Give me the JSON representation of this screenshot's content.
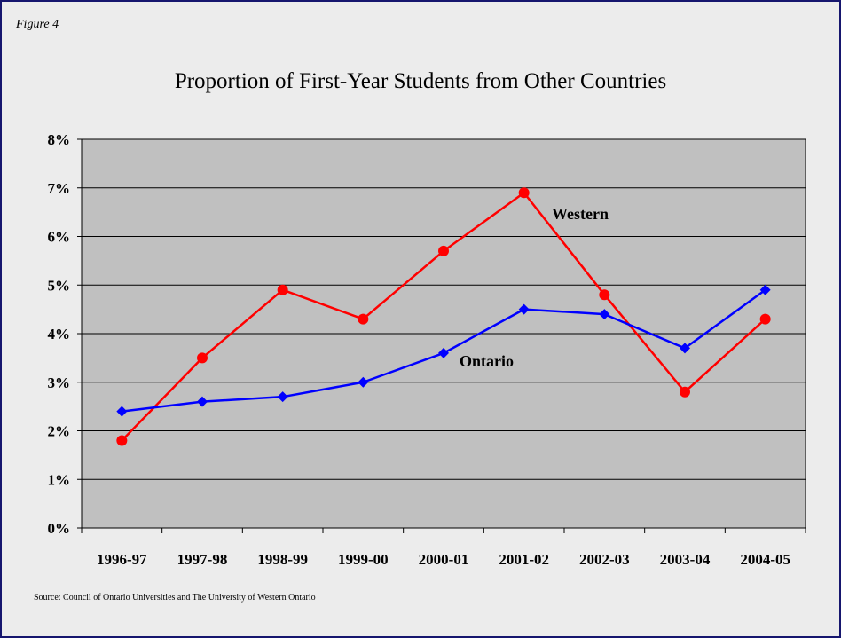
{
  "figure_label": "Figure 4",
  "source": "Source:  Council of Ontario Universities and The University of Western Ontario",
  "chart_data": {
    "type": "line",
    "title": "Proportion of First-Year Students from Other Countries",
    "xlabel": "",
    "ylabel": "",
    "categories": [
      "1996-97",
      "1997-98",
      "1998-99",
      "1999-00",
      "2000-01",
      "2001-02",
      "2002-03",
      "2003-04",
      "2004-05"
    ],
    "ylim": [
      0,
      8
    ],
    "yticks": [
      "0%",
      "1%",
      "2%",
      "3%",
      "4%",
      "5%",
      "6%",
      "7%",
      "8%"
    ],
    "grid": true,
    "series": [
      {
        "name": "Western",
        "color": "#ff0000",
        "marker": "circle",
        "values": [
          1.8,
          3.5,
          4.9,
          4.3,
          5.7,
          6.9,
          4.8,
          2.8,
          4.3
        ]
      },
      {
        "name": "Ontario",
        "color": "#0000ff",
        "marker": "diamond",
        "values": [
          2.4,
          2.6,
          2.7,
          3.0,
          3.6,
          4.5,
          4.4,
          3.7,
          4.9
        ]
      }
    ]
  }
}
